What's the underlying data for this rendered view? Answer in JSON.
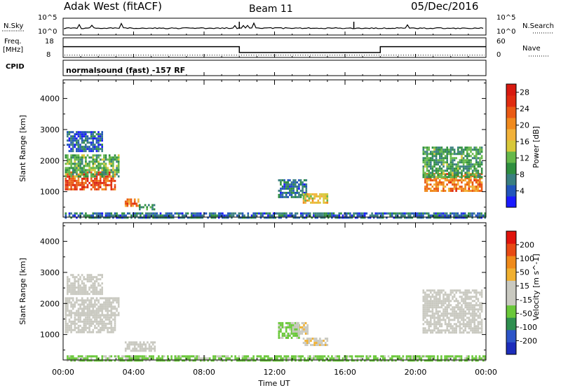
{
  "header": {
    "station": "Adak West (fitACF)",
    "beam": "Beam 11",
    "date": "05/Dec/2016"
  },
  "status_panels": {
    "nsky_label": "N.Sky",
    "nsky_ticks": [
      "10^5",
      "10^0"
    ],
    "nsearch_label": "N.Search",
    "nsearch_ticks": [
      "10^5",
      "10^0"
    ],
    "freq_label": "Freq.",
    "freq_unit": "[MHz]",
    "freq_ticks": [
      "18",
      "8"
    ],
    "nave_label": "Nave",
    "nave_ticks": [
      "60",
      "0"
    ],
    "cpid_label": "CPID",
    "cpid_text": "normalsound (fast) -157 RF",
    "freq_series": [
      {
        "t": 0,
        "mhz": 13.5
      },
      {
        "t": 10,
        "mhz": 13.5
      },
      {
        "t": 10,
        "mhz": 10.5
      },
      {
        "t": 18,
        "mhz": 10.5
      },
      {
        "t": 18,
        "mhz": 13.5
      },
      {
        "t": 24,
        "mhz": 13.5
      }
    ],
    "nave_level": 7
  },
  "chart_data": [
    {
      "type": "heatmap",
      "title": "",
      "ylabel": "Slant Range [km]",
      "xlabel": "",
      "xlim": [
        0,
        24
      ],
      "ylim": [
        180,
        4600
      ],
      "yticks": [
        "1000",
        "2000",
        "3000",
        "4000"
      ],
      "yticks_values": [
        1000,
        2000,
        3000,
        4000
      ],
      "colorbar": {
        "label": "Power [dB]",
        "ticks": [
          "4",
          "8",
          "12",
          "16",
          "20",
          "24",
          "28"
        ],
        "range": [
          0,
          30
        ],
        "colors": [
          "#1a1aff",
          "#2255bb",
          "#3a7f80",
          "#2f8f3f",
          "#66b84a",
          "#d8c83a",
          "#f2b23a",
          "#f08a1e",
          "#ea5a14",
          "#e02c10",
          "#d81a10"
        ]
      },
      "regions": [
        {
          "t0": 0.1,
          "t1": 2.9,
          "r0": 1100,
          "r1": 1650,
          "value": 24
        },
        {
          "t0": 0.1,
          "t1": 3.2,
          "r0": 1500,
          "r1": 2200,
          "value": 11
        },
        {
          "t0": 0.2,
          "t1": 2.2,
          "r0": 2300,
          "r1": 2950,
          "value": 5
        },
        {
          "t0": 3.5,
          "t1": 4.4,
          "r0": 520,
          "r1": 780,
          "value": 21
        },
        {
          "t0": 4.3,
          "t1": 5.2,
          "r0": 450,
          "r1": 600,
          "value": 9
        },
        {
          "t0": 12.2,
          "t1": 13.8,
          "r0": 850,
          "r1": 1400,
          "value": 6
        },
        {
          "t0": 13.6,
          "t1": 15.0,
          "r0": 650,
          "r1": 950,
          "value": 16
        },
        {
          "t0": 20.5,
          "t1": 23.8,
          "r0": 1050,
          "r1": 1600,
          "value": 21
        },
        {
          "t0": 20.4,
          "t1": 23.8,
          "r0": 1500,
          "r1": 2450,
          "value": 10
        },
        {
          "t0": 0.1,
          "t1": 24.0,
          "r0": 190,
          "r1": 330,
          "value": 6
        }
      ]
    },
    {
      "type": "heatmap",
      "title": "",
      "ylabel": "Slant Range [km]",
      "xlabel": "Time UT",
      "xlim": [
        0,
        24
      ],
      "ylim": [
        180,
        4600
      ],
      "xticks": [
        "00:00",
        "04:00",
        "08:00",
        "12:00",
        "16:00",
        "20:00",
        "00:00"
      ],
      "xticks_values": [
        0,
        4,
        8,
        12,
        16,
        20,
        24
      ],
      "yticks": [
        "1000",
        "2000",
        "3000",
        "4000"
      ],
      "yticks_values": [
        1000,
        2000,
        3000,
        4000
      ],
      "colorbar": {
        "label": "Velocity [m s^-1]",
        "ticks": [
          "200",
          "100",
          "50",
          "15",
          "-15",
          "-50",
          "-100",
          "-200"
        ],
        "range": [
          -250,
          250
        ],
        "colors": [
          "#1c2dbb",
          "#2d55c8",
          "#2f8f4f",
          "#6ac83a",
          "#c9c9c0",
          "#c9c9c0",
          "#f0b030",
          "#ef8a1a",
          "#e84a14",
          "#e0140c"
        ]
      },
      "regions": [
        {
          "t0": 0.1,
          "t1": 2.9,
          "r0": 1100,
          "r1": 1650,
          "value": 0
        },
        {
          "t0": 0.1,
          "t1": 3.2,
          "r0": 1650,
          "r1": 2200,
          "value": 0
        },
        {
          "t0": 0.2,
          "t1": 2.2,
          "r0": 2300,
          "r1": 2950,
          "value": 0
        },
        {
          "t0": 3.5,
          "t1": 5.2,
          "r0": 450,
          "r1": 780,
          "value": 0
        },
        {
          "t0": 12.2,
          "t1": 13.4,
          "r0": 900,
          "r1": 1400,
          "value": -60
        },
        {
          "t0": 13.0,
          "t1": 13.9,
          "r0": 1000,
          "r1": 1400,
          "value": 40
        },
        {
          "t0": 13.6,
          "t1": 15.0,
          "r0": 650,
          "r1": 900,
          "value": 40
        },
        {
          "t0": 20.4,
          "t1": 23.8,
          "r0": 1050,
          "r1": 2450,
          "value": 0
        },
        {
          "t0": 0.1,
          "t1": 24.0,
          "r0": 190,
          "r1": 330,
          "value": -60
        }
      ]
    }
  ]
}
